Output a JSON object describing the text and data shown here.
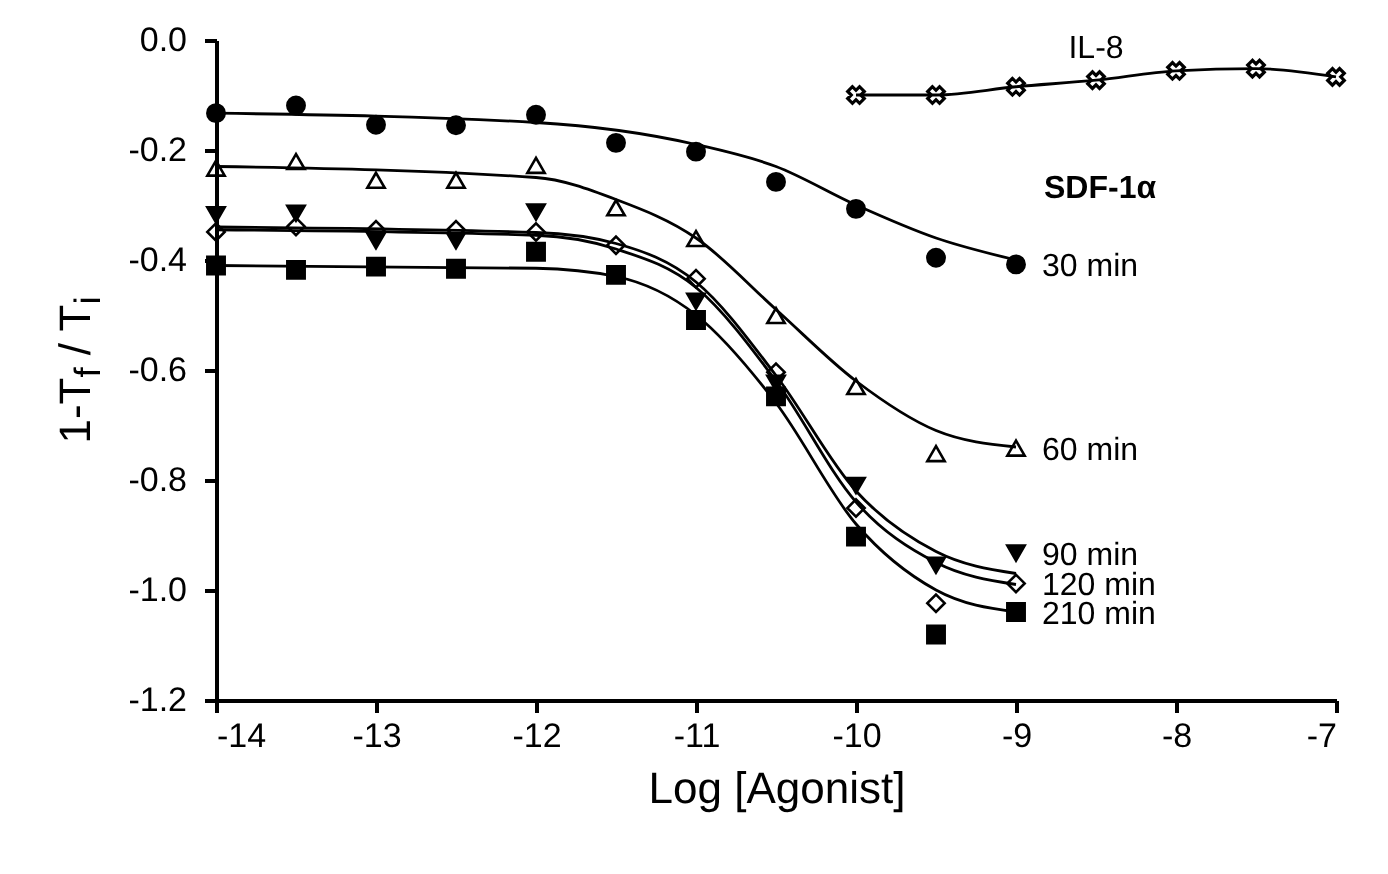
{
  "chart_data": {
    "type": "scatter",
    "xlabel": "Log [Agonist]",
    "ylabel": "1-T$_{f}$ / T$_{i}$",
    "xlim": [
      -14,
      -7
    ],
    "xticks": [
      -14,
      -13,
      -12,
      -11,
      -10,
      -9,
      -8,
      -7
    ],
    "ylim": [
      -1.2,
      0
    ],
    "yticks": [
      {
        "value": 0,
        "label": "0.0"
      },
      -0.2,
      -0.4,
      -0.6,
      -0.8,
      {
        "value": -1,
        "label": "-1.0"
      },
      -1.2
    ],
    "grid": false,
    "annotations": [
      "SDF-1α"
    ],
    "series": [
      {
        "type": "line",
        "marker": "none",
        "color": "#000000",
        "x": [
          -14,
          -12,
          -11,
          -10.5,
          -10,
          -9.5,
          -9
        ],
        "values": [
          -0.133,
          -0.15,
          -0.19,
          -0.23,
          -0.3,
          -0.36,
          -0.4
        ]
      },
      {
        "type": "line",
        "marker": "none",
        "color": "#000000",
        "x": [
          -14,
          -12,
          -11.5,
          -11,
          -10.5,
          -10,
          -9.5,
          -9
        ],
        "values": [
          -0.23,
          -0.25,
          -0.29,
          -0.36,
          -0.49,
          -0.62,
          -0.71,
          -0.74
        ]
      },
      {
        "type": "line",
        "marker": "none",
        "color": "#000000",
        "x": [
          -14,
          -12,
          -11.5,
          -11,
          -10.5,
          -10,
          -9.5,
          -9
        ],
        "values": [
          -0.34,
          -0.35,
          -0.37,
          -0.44,
          -0.61,
          -0.82,
          -0.93,
          -0.97
        ]
      },
      {
        "type": "line",
        "marker": "none",
        "color": "#000000",
        "x": [
          -14,
          -12,
          -11.5,
          -11,
          -10.5,
          -10,
          -9.5,
          -9
        ],
        "values": [
          -0.345,
          -0.355,
          -0.38,
          -0.45,
          -0.62,
          -0.84,
          -0.95,
          -0.99
        ]
      },
      {
        "type": "line",
        "marker": "none",
        "color": "#000000",
        "x": [
          -14,
          -12,
          -11.5,
          -11,
          -10.5,
          -10,
          -9.5,
          -9
        ],
        "values": [
          -0.41,
          -0.415,
          -0.43,
          -0.5,
          -0.66,
          -0.88,
          -1.0,
          -1.04
        ]
      },
      {
        "type": "line",
        "marker": "cross",
        "name": "IL-8",
        "color": "#000000",
        "x": [
          -10,
          -9.5,
          -9,
          -8.5,
          -8,
          -7.5,
          -7
        ],
        "values": [
          -0.1,
          -0.1,
          -0.085,
          -0.073,
          -0.056,
          -0.052,
          -0.067
        ]
      },
      {
        "name": "30 min",
        "marker": "circle",
        "color": "#000000",
        "x": [
          -14,
          -13.5,
          -13,
          -12.5,
          -12,
          -11.5,
          -11,
          -10.5,
          -10,
          -9.5,
          -9
        ],
        "values": [
          -0.133,
          -0.119,
          -0.154,
          -0.155,
          -0.136,
          -0.187,
          -0.203,
          -0.258,
          -0.307,
          -0.396,
          -0.408
        ]
      },
      {
        "name": "60 min",
        "marker": "triangle",
        "color": "#000000",
        "x": [
          -14,
          -13.5,
          -13,
          -12.5,
          -12,
          -11.5,
          -11,
          -10.5,
          -10,
          -9.5,
          -9
        ],
        "values": [
          -0.233,
          -0.221,
          -0.255,
          -0.255,
          -0.228,
          -0.305,
          -0.361,
          -0.501,
          -0.63,
          -0.752,
          -0.742
        ]
      },
      {
        "name": "120 min",
        "marker": "diamond",
        "color": "#000000",
        "x": [
          -14,
          -13.5,
          -13,
          -12.5,
          -12,
          -11.5,
          -11,
          -10.5,
          -10,
          -9.5,
          -9
        ],
        "values": [
          -0.349,
          -0.339,
          -0.345,
          -0.345,
          -0.349,
          -0.373,
          -0.434,
          -0.604,
          -0.851,
          -1.024,
          -0.988
        ]
      },
      {
        "name": "90 min",
        "marker": "triangle-down",
        "color": "#000000",
        "x": [
          -14,
          -13.5,
          -13,
          -12.5,
          -12,
          -11.5,
          -11,
          -10.5,
          -10,
          -9.5,
          -9
        ],
        "values": [
          -0.318,
          -0.315,
          -0.365,
          -0.365,
          -0.313,
          null,
          -0.475,
          -0.624,
          -0.81,
          -0.955,
          -0.933
        ]
      },
      {
        "name": "210 min",
        "marker": "square",
        "color": "#000000",
        "x": [
          -14,
          -13.5,
          -13,
          -12.5,
          -12,
          -11.5,
          -11,
          -10.5,
          -10,
          -9.5,
          -9
        ],
        "values": [
          -0.41,
          -0.418,
          -0.412,
          -0.416,
          -0.385,
          -0.427,
          -0.509,
          -0.648,
          -0.903,
          -1.081,
          -1.04
        ]
      }
    ]
  }
}
